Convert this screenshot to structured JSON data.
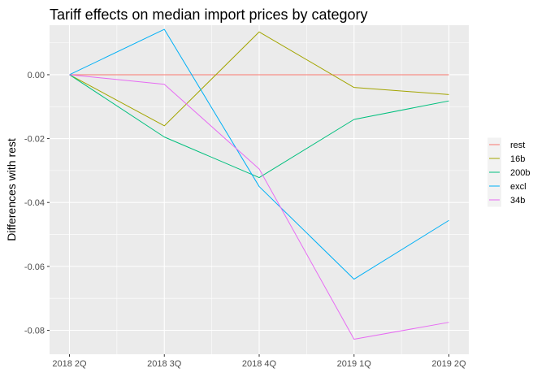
{
  "chart_data": {
    "type": "line",
    "title": "Tariff effects on median import prices by category",
    "xlabel": "",
    "ylabel": "Differences with rest",
    "categories": [
      "2018 2Q",
      "2018 3Q",
      "2018 4Q",
      "2019 1Q",
      "2019 2Q"
    ],
    "y_ticks": [
      0.0,
      -0.02,
      -0.04,
      -0.06,
      -0.08
    ],
    "y_tick_labels": [
      "0.00",
      "-0.02",
      "-0.04",
      "-0.06",
      "-0.08"
    ],
    "ylim": [
      -0.0875,
      0.0155
    ],
    "grid": true,
    "legend_position": "right",
    "series": [
      {
        "name": "rest",
        "color": "#F8766D",
        "values": [
          0.0,
          0.0,
          0.0,
          0.0,
          0.0
        ]
      },
      {
        "name": "16b",
        "color": "#A3A500",
        "values": [
          0.0,
          -0.016,
          0.0134,
          -0.004,
          -0.0062
        ]
      },
      {
        "name": "200b",
        "color": "#00BF7D",
        "values": [
          0.0,
          -0.0195,
          -0.0322,
          -0.014,
          -0.0082
        ]
      },
      {
        "name": "excl",
        "color": "#00B0F6",
        "values": [
          0.0,
          0.0142,
          -0.035,
          -0.064,
          -0.0456
        ]
      },
      {
        "name": "34b",
        "color": "#E76BF3",
        "values": [
          0.0,
          -0.003,
          -0.0295,
          -0.0828,
          -0.0775
        ]
      }
    ]
  }
}
